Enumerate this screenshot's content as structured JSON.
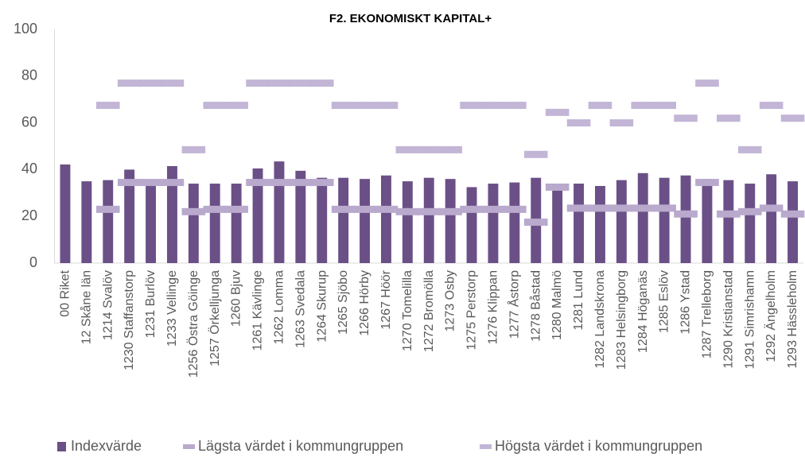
{
  "chart_data": {
    "type": "bar",
    "title": "F2. EKONOMISKT KAPITAL+",
    "categories": [
      "00 Riket",
      "12 Skåne län",
      "1214 Svalöv",
      "1230 Staffanstorp",
      "1231 Burlöv",
      "1233 Vellinge",
      "1256 Östra Göinge",
      "1257 Örkelljunga",
      "1260 Bjuv",
      "1261 Kävlinge",
      "1262 Lomma",
      "1263 Svedala",
      "1264 Skurup",
      "1265 Sjöbo",
      "1266 Hörby",
      "1267 Höör",
      "1270 Tomelilla",
      "1272 Bromölla",
      "1273 Osby",
      "1275 Perstorp",
      "1276 Klippan",
      "1277 Åstorp",
      "1278 Båstad",
      "1280 Malmö",
      "1281 Lund",
      "1282 Landskrona",
      "1283 Helsingborg",
      "1284 Höganäs",
      "1285 Eslöv",
      "1286 Ystad",
      "1287 Trelleborg",
      "1290 Kristianstad",
      "1291 Simrishamn",
      "1292 Ängelholm",
      "1293 Hässleholm"
    ],
    "series": [
      {
        "name": "Indexvärde",
        "type": "bar",
        "color": "#6b5087",
        "values": [
          42.2,
          35,
          35.5,
          40,
          33,
          41.5,
          34,
          34,
          34,
          40.5,
          43.5,
          39.5,
          36.5,
          36.5,
          36,
          37.5,
          35,
          36.5,
          36,
          32.5,
          34,
          34.5,
          36.5,
          31,
          34,
          33,
          35.5,
          38.5,
          36.5,
          37.5,
          36,
          35.5,
          34,
          38,
          35
        ]
      },
      {
        "name": "Lägsta värdet i kommungruppen",
        "type": "dash",
        "color": "#b9a9cd",
        "values": [
          null,
          null,
          23,
          34.5,
          34.5,
          34.5,
          22,
          23,
          23,
          34.5,
          34.5,
          34.5,
          34.5,
          23,
          23,
          23,
          22,
          22,
          22,
          23,
          23,
          23,
          17.5,
          32.5,
          23.5,
          23.5,
          23.5,
          23.5,
          23.5,
          21,
          34.5,
          21,
          22,
          23.5,
          21
        ]
      },
      {
        "name": "Högsta värdet i kommungruppen",
        "type": "dash",
        "color": "#c2b5d6",
        "values": [
          null,
          null,
          67.5,
          77,
          77,
          77,
          48.5,
          67.5,
          67.5,
          77,
          77,
          77,
          77,
          67.5,
          67.5,
          67.5,
          48.5,
          48.5,
          48.5,
          67.5,
          67.5,
          67.5,
          46.5,
          64.5,
          60,
          67.5,
          60,
          67.5,
          67.5,
          62,
          77,
          62,
          48.5,
          67.5,
          62
        ]
      }
    ],
    "ylim": [
      0,
      100
    ],
    "yticks": [
      0,
      20,
      40,
      60,
      80,
      100
    ],
    "grid": false,
    "legend": "bottom"
  }
}
